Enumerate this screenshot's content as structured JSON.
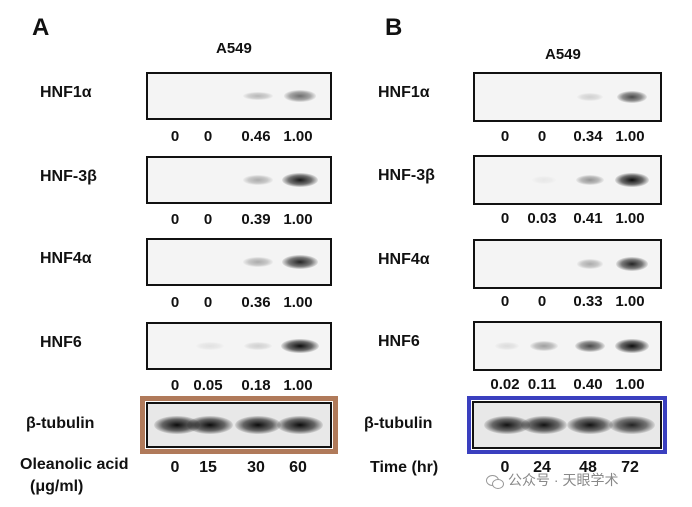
{
  "panel_a": {
    "letter": "A",
    "cell_line": "A549",
    "blots": [
      {
        "label": "HNF1α",
        "quant": [
          "0",
          "0",
          "0.46",
          "1.00"
        ],
        "intensity": [
          0.0,
          0.0,
          0.25,
          0.55
        ]
      },
      {
        "label": "HNF-3β",
        "quant": [
          "0",
          "0",
          "0.39",
          "1.00"
        ],
        "intensity": [
          0.0,
          0.0,
          0.3,
          0.9
        ]
      },
      {
        "label": "HNF4α",
        "quant": [
          "0",
          "0",
          "0.36",
          "1.00"
        ],
        "intensity": [
          0.0,
          0.0,
          0.3,
          0.85
        ]
      },
      {
        "label": "HNF6",
        "quant": [
          "0",
          "0.05",
          "0.18",
          "1.00"
        ],
        "intensity": [
          0.0,
          0.08,
          0.15,
          0.95
        ]
      }
    ],
    "loading": {
      "label": "β-tubulin",
      "intensity": [
        0.95,
        0.95,
        0.95,
        0.95
      ],
      "frame_color": "#b07a5a"
    },
    "treatment_label": "Oleanolic acid",
    "treatment_unit": "(μg/ml)",
    "doses": [
      "0",
      "15",
      "30",
      "60"
    ]
  },
  "panel_b": {
    "letter": "B",
    "cell_line": "A549",
    "blots": [
      {
        "label": "HNF1α",
        "quant": [
          "0",
          "0",
          "0.34",
          "1.00"
        ],
        "intensity": [
          0.0,
          0.0,
          0.15,
          0.7
        ]
      },
      {
        "label": "HNF-3β",
        "quant": [
          "0",
          "0.03",
          "0.41",
          "1.00"
        ],
        "intensity": [
          0.0,
          0.05,
          0.4,
          0.95
        ]
      },
      {
        "label": "HNF4α",
        "quant": [
          "0",
          "0",
          "0.33",
          "1.00"
        ],
        "intensity": [
          0.0,
          0.0,
          0.3,
          0.85
        ]
      },
      {
        "label": "HNF6",
        "quant": [
          "0.02",
          "0.11",
          "0.40",
          "1.00"
        ],
        "intensity": [
          0.1,
          0.35,
          0.7,
          0.95
        ]
      }
    ],
    "loading": {
      "label": "β-tubulin",
      "intensity": [
        0.92,
        0.92,
        0.92,
        0.85
      ],
      "frame_color": "#3a3fbf"
    },
    "treatment_label": "Time (hr)",
    "doses": [
      "0",
      "24",
      "48",
      "72"
    ]
  },
  "watermark": "公众号 · 天眼学术"
}
